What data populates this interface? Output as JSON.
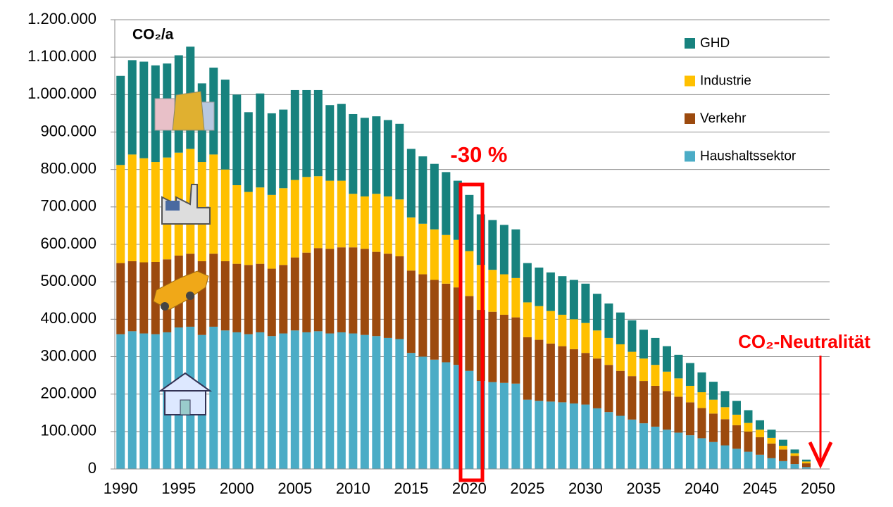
{
  "chart_data": {
    "type": "stacked_bar",
    "annotations": {
      "unit": "CO₂/a",
      "reduction": "-30 %",
      "target": "CO₂-Neutralität"
    },
    "x": [
      1990,
      1991,
      1992,
      1993,
      1994,
      1995,
      1996,
      1997,
      1998,
      1999,
      2000,
      2001,
      2002,
      2003,
      2004,
      2005,
      2006,
      2007,
      2008,
      2009,
      2010,
      2011,
      2012,
      2013,
      2014,
      2015,
      2016,
      2017,
      2018,
      2019,
      2020,
      2021,
      2022,
      2023,
      2024,
      2025,
      2026,
      2027,
      2028,
      2029,
      2030,
      2031,
      2032,
      2033,
      2034,
      2035,
      2036,
      2037,
      2038,
      2039,
      2040,
      2041,
      2042,
      2043,
      2044,
      2045,
      2046,
      2047,
      2048,
      2049
    ],
    "series": [
      {
        "name": "Haushaltssektor",
        "color": "#4bacc6",
        "values": [
          360000,
          368000,
          362000,
          360000,
          365000,
          378000,
          380000,
          358000,
          380000,
          370000,
          365000,
          360000,
          365000,
          355000,
          362000,
          370000,
          365000,
          368000,
          362000,
          365000,
          362000,
          358000,
          355000,
          350000,
          347000,
          310000,
          300000,
          292000,
          285000,
          278000,
          262000,
          235000,
          232000,
          230000,
          228000,
          185000,
          182000,
          180000,
          178000,
          175000,
          172000,
          162000,
          152000,
          142000,
          132000,
          122000,
          113000,
          105000,
          97000,
          90000,
          82000,
          72000,
          63000,
          54000,
          46000,
          38000,
          29000,
          21000,
          13000,
          5000
        ]
      },
      {
        "name": "Verkehr",
        "color": "#9c4a0e",
        "values": [
          190000,
          187000,
          190000,
          193000,
          195000,
          192000,
          195000,
          197000,
          195000,
          185000,
          183000,
          185000,
          183000,
          180000,
          183000,
          195000,
          213000,
          222000,
          226000,
          227000,
          230000,
          230000,
          225000,
          225000,
          221000,
          220000,
          220000,
          213000,
          210000,
          207000,
          200000,
          190000,
          188000,
          182000,
          177000,
          167000,
          163000,
          155000,
          150000,
          145000,
          138000,
          133000,
          126000,
          120000,
          116000,
          113000,
          109000,
          103000,
          96000,
          88000,
          81000,
          76000,
          70000,
          63000,
          54000,
          47000,
          39000,
          31000,
          22000,
          10000
        ]
      },
      {
        "name": "Industrie",
        "color": "#ffc000",
        "values": [
          262000,
          285000,
          278000,
          267000,
          272000,
          275000,
          280000,
          265000,
          265000,
          245000,
          210000,
          195000,
          204000,
          197000,
          205000,
          207000,
          202000,
          192000,
          182000,
          178000,
          143000,
          140000,
          155000,
          153000,
          152000,
          142000,
          135000,
          135000,
          130000,
          127000,
          120000,
          120000,
          112000,
          108000,
          105000,
          93000,
          90000,
          87000,
          84000,
          80000,
          80000,
          75000,
          72000,
          71000,
          65000,
          60000,
          56000,
          52000,
          49000,
          44000,
          42000,
          37000,
          32000,
          28000,
          23000,
          20000,
          15000,
          10000,
          7000,
          5000
        ]
      },
      {
        "name": "GHD",
        "color": "#17827e",
        "values": [
          238000,
          252000,
          258000,
          258000,
          251000,
          260000,
          273000,
          210000,
          232000,
          240000,
          242000,
          213000,
          251000,
          218000,
          210000,
          240000,
          232000,
          230000,
          202000,
          205000,
          213000,
          210000,
          207000,
          204000,
          202000,
          183000,
          180000,
          175000,
          168000,
          158000,
          150000,
          135000,
          133000,
          132000,
          130000,
          105000,
          103000,
          103000,
          103000,
          105000,
          105000,
          98000,
          92000,
          85000,
          84000,
          77000,
          72000,
          68000,
          63000,
          61000,
          53000,
          48000,
          43000,
          37000,
          34000,
          25000,
          22000,
          16000,
          10000,
          5000
        ]
      }
    ],
    "xlim": [
      1989.5,
      2051
    ],
    "xticks": [
      1990,
      1995,
      2000,
      2005,
      2010,
      2015,
      2020,
      2025,
      2030,
      2035,
      2040,
      2045,
      2050
    ],
    "ylim": [
      0,
      1200000
    ],
    "yticks": [
      0,
      {
        "value": 100000,
        "label": "100.000"
      },
      {
        "value": 200000,
        "label": "200.000"
      },
      {
        "value": 300000,
        "label": "300.000"
      },
      {
        "value": 400000,
        "label": "400.000"
      },
      {
        "value": 500000,
        "label": "500.000"
      },
      {
        "value": 600000,
        "label": "600.000"
      },
      {
        "value": 700000,
        "label": "700.000"
      },
      {
        "value": 800000,
        "label": "800.000"
      },
      {
        "value": 900000,
        "label": "900.000"
      },
      {
        "value": 1000000,
        "label": "1.000.000"
      },
      {
        "value": 1100000,
        "label": "1.100.000"
      },
      {
        "value": 1200000,
        "label": "1.200.000"
      }
    ],
    "grid": true,
    "legend": "upper right"
  }
}
